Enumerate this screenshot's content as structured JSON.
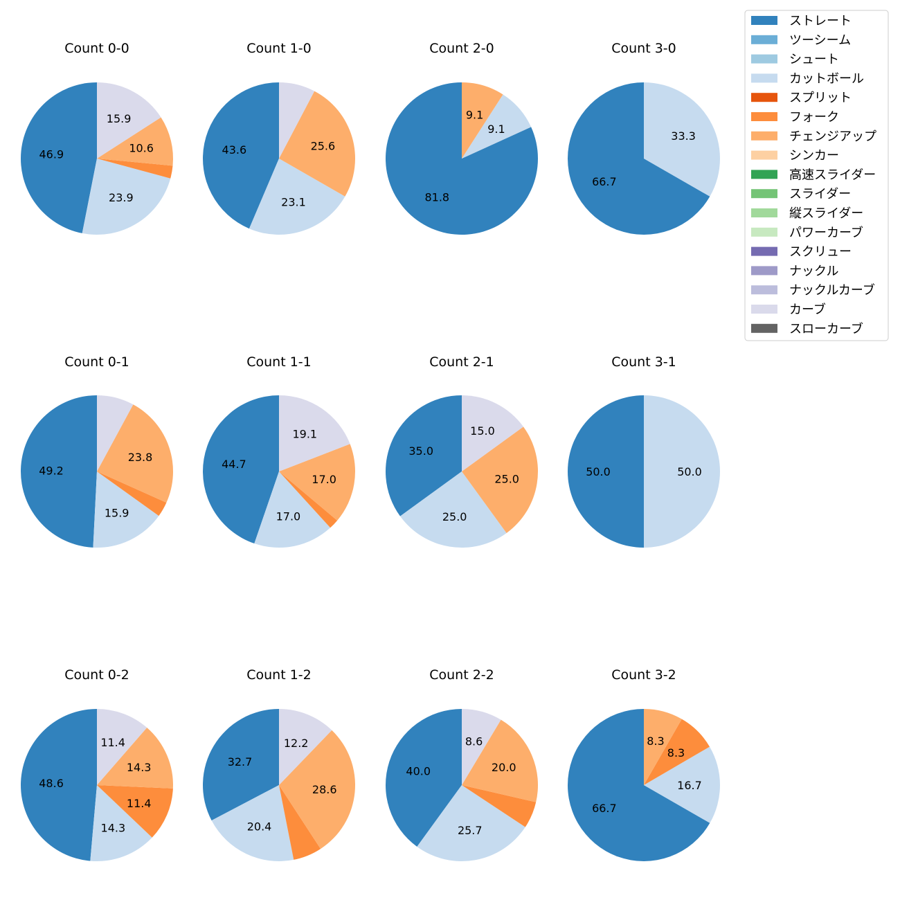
{
  "chart_data": {
    "type": "pie",
    "categories": [
      "ストレート",
      "ツーシーム",
      "シュート",
      "カットボール",
      "スプリット",
      "フォーク",
      "チェンジアップ",
      "シンカー",
      "高速スライダー",
      "スライダー",
      "縦スライダー",
      "パワーカーブ",
      "スクリュー",
      "ナックル",
      "ナックルカーブ",
      "カーブ",
      "スローカーブ"
    ],
    "colors": [
      "#3182bd",
      "#6baed6",
      "#9ecae1",
      "#c6dbef",
      "#e6550d",
      "#fd8d3c",
      "#fdae6b",
      "#fdd0a2",
      "#31a354",
      "#74c476",
      "#a1d99b",
      "#c7e9c0",
      "#756bb1",
      "#9e9ac8",
      "#bcbddc",
      "#dadaeb",
      "#636363"
    ],
    "legend_placement": "top-right",
    "label_threshold": 8,
    "charts": [
      {
        "title": "Count 0-0",
        "values": [
          46.9,
          0,
          0,
          23.9,
          0,
          2.7,
          10.6,
          0,
          0,
          0,
          0,
          0,
          0,
          0,
          0,
          15.9,
          0
        ]
      },
      {
        "title": "Count 1-0",
        "values": [
          43.6,
          0,
          0,
          23.1,
          0,
          0,
          25.6,
          0,
          0,
          0,
          0,
          0,
          0,
          0,
          0,
          7.7,
          0
        ]
      },
      {
        "title": "Count 2-0",
        "values": [
          81.8,
          0,
          0,
          9.1,
          0,
          0,
          9.1,
          0,
          0,
          0,
          0,
          0,
          0,
          0,
          0,
          0,
          0
        ]
      },
      {
        "title": "Count 3-0",
        "values": [
          66.7,
          0,
          0,
          33.3,
          0,
          0,
          0,
          0,
          0,
          0,
          0,
          0,
          0,
          0,
          0,
          0,
          0
        ]
      },
      {
        "title": "Count 0-1",
        "values": [
          49.2,
          0,
          0,
          15.9,
          0,
          3.2,
          23.8,
          0,
          0,
          0,
          0,
          0,
          0,
          0,
          0,
          7.9,
          0
        ]
      },
      {
        "title": "Count 1-1",
        "values": [
          44.7,
          0,
          0,
          17.0,
          0,
          2.1,
          17.0,
          0,
          0,
          0,
          0,
          0,
          0,
          0,
          0,
          19.1,
          0
        ]
      },
      {
        "title": "Count 2-1",
        "values": [
          35.0,
          0,
          0,
          25.0,
          0,
          0,
          25.0,
          0,
          0,
          0,
          0,
          0,
          0,
          0,
          0,
          15.0,
          0
        ]
      },
      {
        "title": "Count 3-1",
        "values": [
          50.0,
          0,
          0,
          50.0,
          0,
          0,
          0,
          0,
          0,
          0,
          0,
          0,
          0,
          0,
          0,
          0,
          0
        ]
      },
      {
        "title": "Count 0-2",
        "values": [
          48.6,
          0,
          0,
          14.3,
          0,
          11.4,
          14.3,
          0,
          0,
          0,
          0,
          0,
          0,
          0,
          0,
          11.4,
          0
        ]
      },
      {
        "title": "Count 1-2",
        "values": [
          32.7,
          0,
          0,
          20.4,
          0,
          6.1,
          28.6,
          0,
          0,
          0,
          0,
          0,
          0,
          0,
          0,
          12.2,
          0
        ]
      },
      {
        "title": "Count 2-2",
        "values": [
          40.0,
          0,
          0,
          25.7,
          0,
          5.7,
          20.0,
          0,
          0,
          0,
          0,
          0,
          0,
          0,
          0,
          8.6,
          0
        ]
      },
      {
        "title": "Count 3-2",
        "values": [
          66.7,
          0,
          0,
          16.7,
          0,
          8.3,
          8.3,
          0,
          0,
          0,
          0,
          0,
          0,
          0,
          0,
          0,
          0
        ]
      }
    ]
  }
}
